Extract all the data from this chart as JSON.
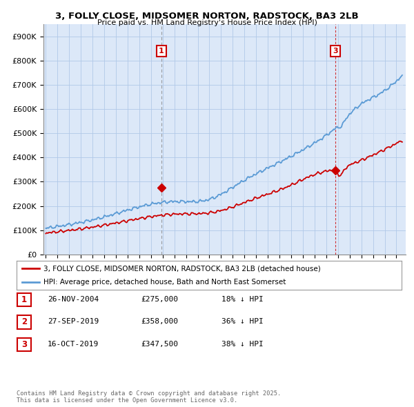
{
  "title": "3, FOLLY CLOSE, MIDSOMER NORTON, RADSTOCK, BA3 2LB",
  "subtitle": "Price paid vs. HM Land Registry's House Price Index (HPI)",
  "ylim": [
    0,
    950000
  ],
  "yticks": [
    0,
    100000,
    200000,
    300000,
    400000,
    500000,
    600000,
    700000,
    800000,
    900000
  ],
  "ytick_labels": [
    "£0",
    "£100K",
    "£200K",
    "£300K",
    "£400K",
    "£500K",
    "£600K",
    "£700K",
    "£800K",
    "£900K"
  ],
  "bg_color": "#dce8f8",
  "grid_color": "#b0c8e8",
  "hpi_color": "#5b9bd5",
  "price_color": "#cc0000",
  "sale1_x": 2004.9,
  "sale1_y": 275000,
  "sale2_x": 2019.73,
  "sale2_y": 358000,
  "sale3_x": 2019.79,
  "sale3_y": 347500,
  "vline1_x": 2004.9,
  "vline2_x": 2019.79,
  "legend_label_red": "3, FOLLY CLOSE, MIDSOMER NORTON, RADSTOCK, BA3 2LB (detached house)",
  "legend_label_blue": "HPI: Average price, detached house, Bath and North East Somerset",
  "table_rows": [
    {
      "num": "1",
      "date": "26-NOV-2004",
      "price": "£275,000",
      "hpi": "18% ↓ HPI"
    },
    {
      "num": "2",
      "date": "27-SEP-2019",
      "price": "£358,000",
      "hpi": "36% ↓ HPI"
    },
    {
      "num": "3",
      "date": "16-OCT-2019",
      "price": "£347,500",
      "hpi": "38% ↓ HPI"
    }
  ],
  "copyright": "Contains HM Land Registry data © Crown copyright and database right 2025.\nThis data is licensed under the Open Government Licence v3.0.",
  "xlim_left": 1994.8,
  "xlim_right": 2025.8
}
